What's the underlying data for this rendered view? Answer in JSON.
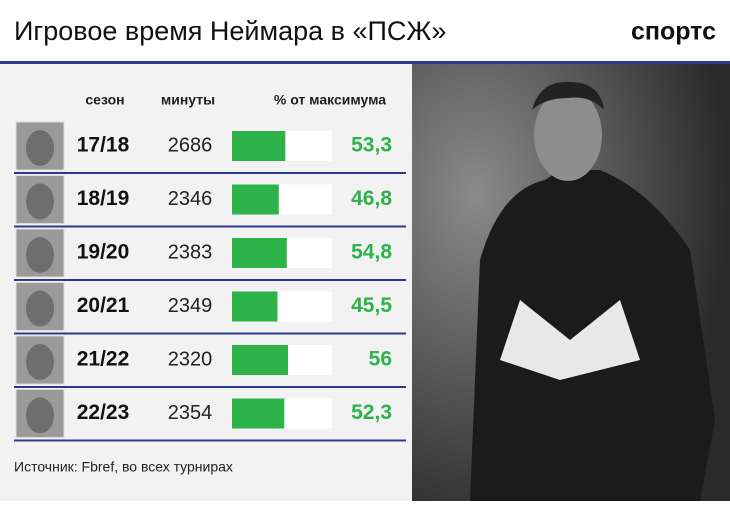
{
  "header": {
    "title": "Игровое время Неймара в «ПСЖ»",
    "logo": "спортс"
  },
  "table": {
    "columns": [
      "сезон",
      "минуты",
      "% от максимума"
    ],
    "seasons": [
      "17/18",
      "18/19",
      "19/20",
      "20/21",
      "21/22",
      "22/23"
    ],
    "minutes": [
      2686,
      2346,
      2383,
      2349,
      2320,
      2354
    ],
    "percent": [
      53.3,
      46.8,
      54.8,
      45.5,
      56,
      52.3
    ],
    "value_labels": [
      "53,3",
      "46,8",
      "54,8",
      "45,5",
      "56",
      "52,3"
    ],
    "xlim": [
      0,
      100
    ],
    "bar_color": "#2db34a"
  },
  "footer": {
    "source": "Источник: Fbref, во всех турнирах"
  }
}
